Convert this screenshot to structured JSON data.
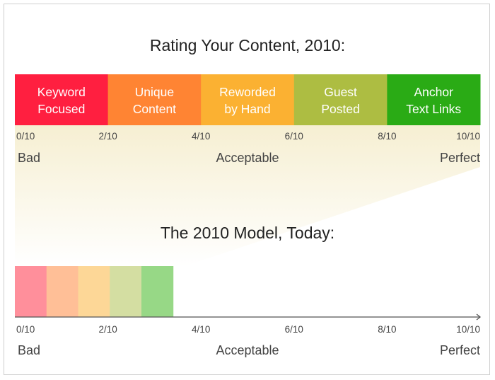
{
  "top_title": "Rating Your Content, 2010:",
  "bottom_title": "The 2010 Model, Today:",
  "segments": [
    {
      "lines": [
        "Keyword",
        "Focused"
      ],
      "color": "#ff1f40",
      "faded_color": "#ff8f9b"
    },
    {
      "lines": [
        "Unique",
        "Content"
      ],
      "color": "#ff8433",
      "faded_color": "#ffbf97"
    },
    {
      "lines": [
        "Reworded",
        "by Hand"
      ],
      "color": "#fbb132",
      "faded_color": "#fdd797"
    },
    {
      "lines": [
        "Guest",
        "Posted"
      ],
      "color": "#adbd42",
      "faded_color": "#d4dea2"
    },
    {
      "lines": [
        "Anchor",
        "Text Links"
      ],
      "color": "#2aab15",
      "faded_color": "#97d886"
    }
  ],
  "ticks": [
    "0/10",
    "2/10",
    "4/10",
    "6/10",
    "8/10",
    "10/10"
  ],
  "qualities": {
    "low": "Bad",
    "mid": "Acceptable",
    "high": "Perfect"
  },
  "chart_data": {
    "type": "bar",
    "scale": [
      0,
      10
    ],
    "top_bar_range": [
      0,
      10
    ],
    "bottom_bar_range": [
      0,
      3.4
    ]
  }
}
